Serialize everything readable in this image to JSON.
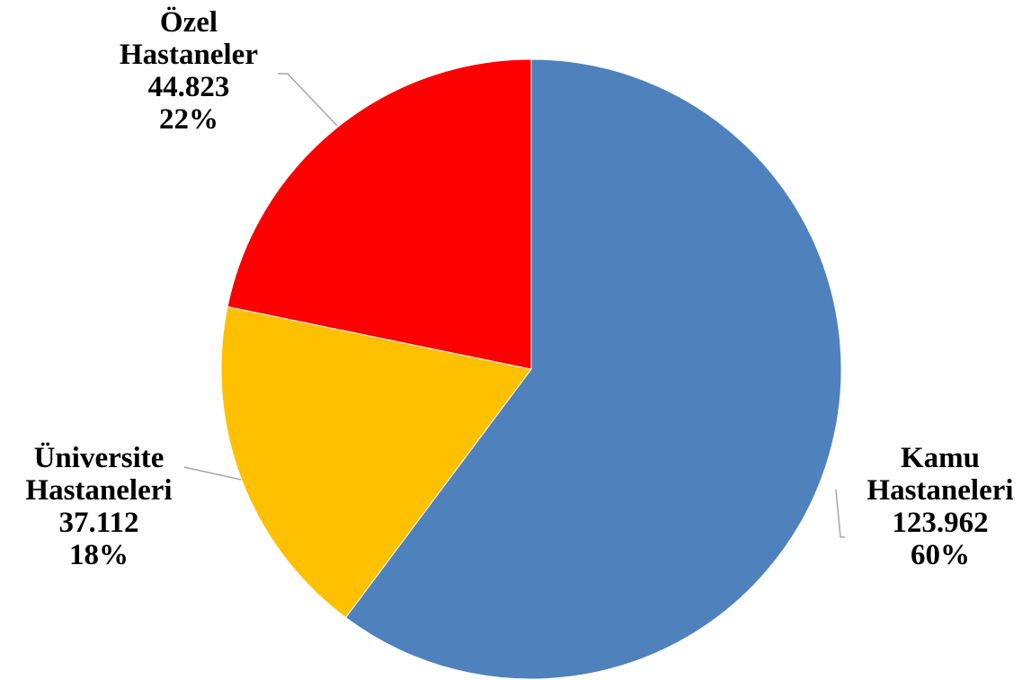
{
  "chart_data": {
    "type": "pie",
    "title": "",
    "slices": [
      {
        "label_lines": [
          "Kamu",
          "Hastaneleri"
        ],
        "value": 123962,
        "value_label": "123.962",
        "percent_label": "60%",
        "color": "#4f81bd"
      },
      {
        "label_lines": [
          "Üniversite",
          "Hastaneleri"
        ],
        "value": 37112,
        "value_label": "37.112",
        "percent_label": "18%",
        "color": "#ffc000"
      },
      {
        "label_lines": [
          "Özel",
          "Hastaneler"
        ],
        "value": 44823,
        "value_label": "44.823",
        "percent_label": "22%",
        "color": "#ff0000"
      }
    ],
    "start": "12 o'clock",
    "direction": "clockwise",
    "legend": "none",
    "data_labels": "outside with leader lines"
  }
}
